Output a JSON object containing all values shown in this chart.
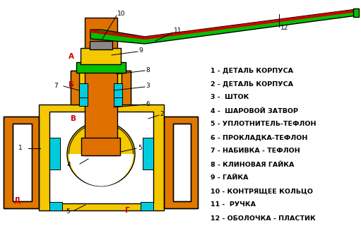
{
  "background_color": "#FFFFFF",
  "colors": {
    "yellow": "#F5C800",
    "orange_body": "#E07800",
    "orange_stem": "#E07000",
    "orange_dark": "#C06000",
    "green": "#00C000",
    "green_dark": "#009000",
    "cyan": "#00CCDD",
    "white": "#FFFFFF",
    "black": "#000000",
    "gray": "#888888",
    "red_label": "#CC0000",
    "red_stripe": "#CC0000"
  },
  "legend_items": [
    "1 - ДЕТАЛЬ КОРПУСА",
    "2 - ДЕТАЛЬ КОРПУСА",
    "3 -  ШТОК",
    "4 -  ШАРОВОЙ ЗАТВОР",
    "5 - УПЛОТНИТЕЛЬ-ТЕФЛОН",
    "6 - ПРОКЛАДКА-ТЕФЛОН",
    "7 - НАБИВКА - ТЕФЛОН",
    "8 - КЛИНОВАЯ ГАЙКА",
    "9 - ГАЙКА",
    "10 - КОНТРЯЩЕЕ КОЛЬЦО",
    "11 -  РУЧКА",
    "12 - ОБОЛОЧКА - ПЛАСТИК"
  ]
}
